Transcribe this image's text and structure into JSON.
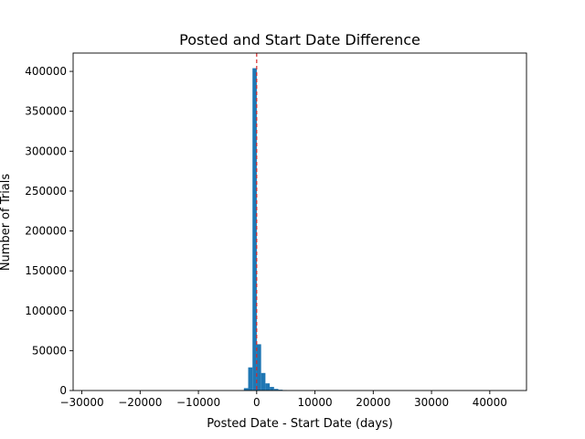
{
  "chart_data": {
    "type": "bar",
    "title": "Posted and Start Date Difference",
    "xlabel": "Posted Date - Start Date (days)",
    "ylabel": "Number of Trials",
    "xlim": [
      -31500,
      46300
    ],
    "ylim": [
      0,
      423000
    ],
    "xticks": [
      -30000,
      -20000,
      -10000,
      0,
      10000,
      20000,
      30000,
      40000
    ],
    "xtick_labels": [
      "−30000",
      "−20000",
      "−10000",
      "0",
      "10000",
      "20000",
      "30000",
      "40000"
    ],
    "yticks": [
      0,
      50000,
      100000,
      150000,
      200000,
      250000,
      300000,
      350000,
      400000
    ],
    "ytick_labels": [
      "0",
      "50000",
      "100000",
      "150000",
      "200000",
      "250000",
      "300000",
      "350000",
      "400000"
    ],
    "bin_width": 740,
    "bins": [
      {
        "x0": -2200,
        "x1": -1460,
        "count": 3000
      },
      {
        "x0": -1460,
        "x1": -720,
        "count": 29000
      },
      {
        "x0": -720,
        "x1": 20,
        "count": 404000
      },
      {
        "x0": 20,
        "x1": 760,
        "count": 58000
      },
      {
        "x0": 760,
        "x1": 1500,
        "count": 22000
      },
      {
        "x0": 1500,
        "x1": 2240,
        "count": 9000
      },
      {
        "x0": 2240,
        "x1": 2980,
        "count": 4500
      },
      {
        "x0": 2980,
        "x1": 3720,
        "count": 2000
      },
      {
        "x0": 3720,
        "x1": 4460,
        "count": 1000
      },
      {
        "x0": 4460,
        "x1": 5200,
        "count": 500
      }
    ],
    "reference_line": {
      "x": 0,
      "color": "#d62728",
      "style": "dashed"
    },
    "bar_color": "#1f77b4",
    "grid": false,
    "legend": "none"
  }
}
